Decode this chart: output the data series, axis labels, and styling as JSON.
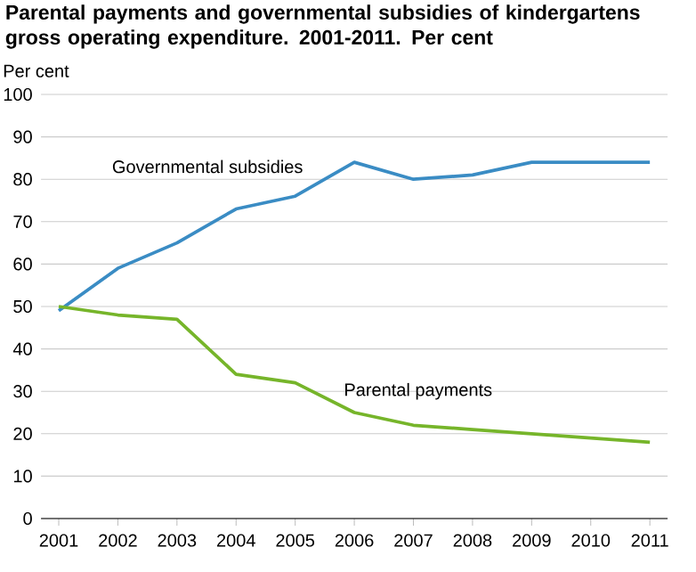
{
  "chart_data": {
    "type": "line",
    "title": "Parental payments and governmental subsidies of kindergartens gross operating expenditure. 2001-2011. Per cent",
    "ylabel": "Per cent",
    "categories": [
      "2001",
      "2002",
      "2003",
      "2004",
      "2005",
      "2006",
      "2007",
      "2008",
      "2009",
      "2010",
      "2011"
    ],
    "series": [
      {
        "name": "Governmental subsidies",
        "color": "#3a8cc4",
        "values": [
          49,
          59,
          65,
          73,
          76,
          84,
          80,
          81,
          84,
          84,
          84
        ]
      },
      {
        "name": "Parental payments",
        "color": "#76b52a",
        "values": [
          50,
          48,
          47,
          34,
          32,
          25,
          22,
          21,
          20,
          19,
          18
        ]
      }
    ],
    "ylim": [
      0,
      100
    ],
    "yticks": [
      0,
      10,
      20,
      30,
      40,
      50,
      60,
      70,
      80,
      90,
      100
    ],
    "grid": "y",
    "legend": false,
    "marker": "none",
    "line_style": "solid"
  }
}
